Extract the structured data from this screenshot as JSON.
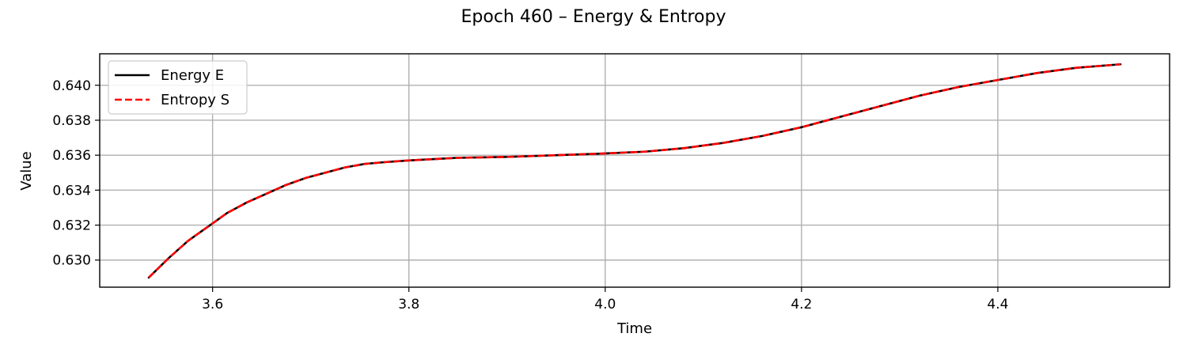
{
  "chart_data": {
    "type": "line",
    "title": "Epoch 460 – Energy & Entropy",
    "xlabel": "Time",
    "ylabel": "Value",
    "xlim": [
      3.485,
      4.575
    ],
    "ylim": [
      0.62845,
      0.6418
    ],
    "xticks": [
      3.6,
      3.8,
      4.0,
      4.2,
      4.4
    ],
    "xtick_labels": [
      "3.6",
      "3.8",
      "4.0",
      "4.2",
      "4.4"
    ],
    "yticks": [
      0.63,
      0.632,
      0.634,
      0.636,
      0.638,
      0.64
    ],
    "ytick_labels": [
      "0.630",
      "0.632",
      "0.634",
      "0.636",
      "0.638",
      "0.640"
    ],
    "grid": true,
    "legend_position": "top-left",
    "series": [
      {
        "name": "Energy E",
        "color": "#000000",
        "line_style": "solid",
        "x": [
          3.535,
          3.555,
          3.575,
          3.595,
          3.615,
          3.635,
          3.655,
          3.675,
          3.695,
          3.715,
          3.735,
          3.755,
          3.775,
          3.8,
          3.85,
          3.9,
          3.95,
          4.0,
          4.04,
          4.08,
          4.12,
          4.16,
          4.2,
          4.24,
          4.28,
          4.32,
          4.36,
          4.4,
          4.44,
          4.48,
          4.525
        ],
        "y": [
          0.629,
          0.6301,
          0.6311,
          0.6319,
          0.6327,
          0.6333,
          0.6338,
          0.6343,
          0.6347,
          0.635,
          0.6353,
          0.6355,
          0.6356,
          0.6357,
          0.63585,
          0.6359,
          0.636,
          0.6361,
          0.6362,
          0.6364,
          0.6367,
          0.6371,
          0.6376,
          0.6382,
          0.6388,
          0.6394,
          0.6399,
          0.6403,
          0.6407,
          0.641,
          0.6412
        ]
      },
      {
        "name": "Entropy S",
        "color": "#ff0000",
        "line_style": "dashed",
        "x": [
          3.535,
          3.555,
          3.575,
          3.595,
          3.615,
          3.635,
          3.655,
          3.675,
          3.695,
          3.715,
          3.735,
          3.755,
          3.775,
          3.8,
          3.85,
          3.9,
          3.95,
          4.0,
          4.04,
          4.08,
          4.12,
          4.16,
          4.2,
          4.24,
          4.28,
          4.32,
          4.36,
          4.4,
          4.44,
          4.48,
          4.525
        ],
        "y": [
          0.629,
          0.6301,
          0.6311,
          0.6319,
          0.6327,
          0.6333,
          0.6338,
          0.6343,
          0.6347,
          0.635,
          0.6353,
          0.6355,
          0.6356,
          0.6357,
          0.63585,
          0.6359,
          0.636,
          0.6361,
          0.6362,
          0.6364,
          0.6367,
          0.6371,
          0.6376,
          0.6382,
          0.6388,
          0.6394,
          0.6399,
          0.6403,
          0.6407,
          0.641,
          0.6412
        ]
      }
    ]
  }
}
